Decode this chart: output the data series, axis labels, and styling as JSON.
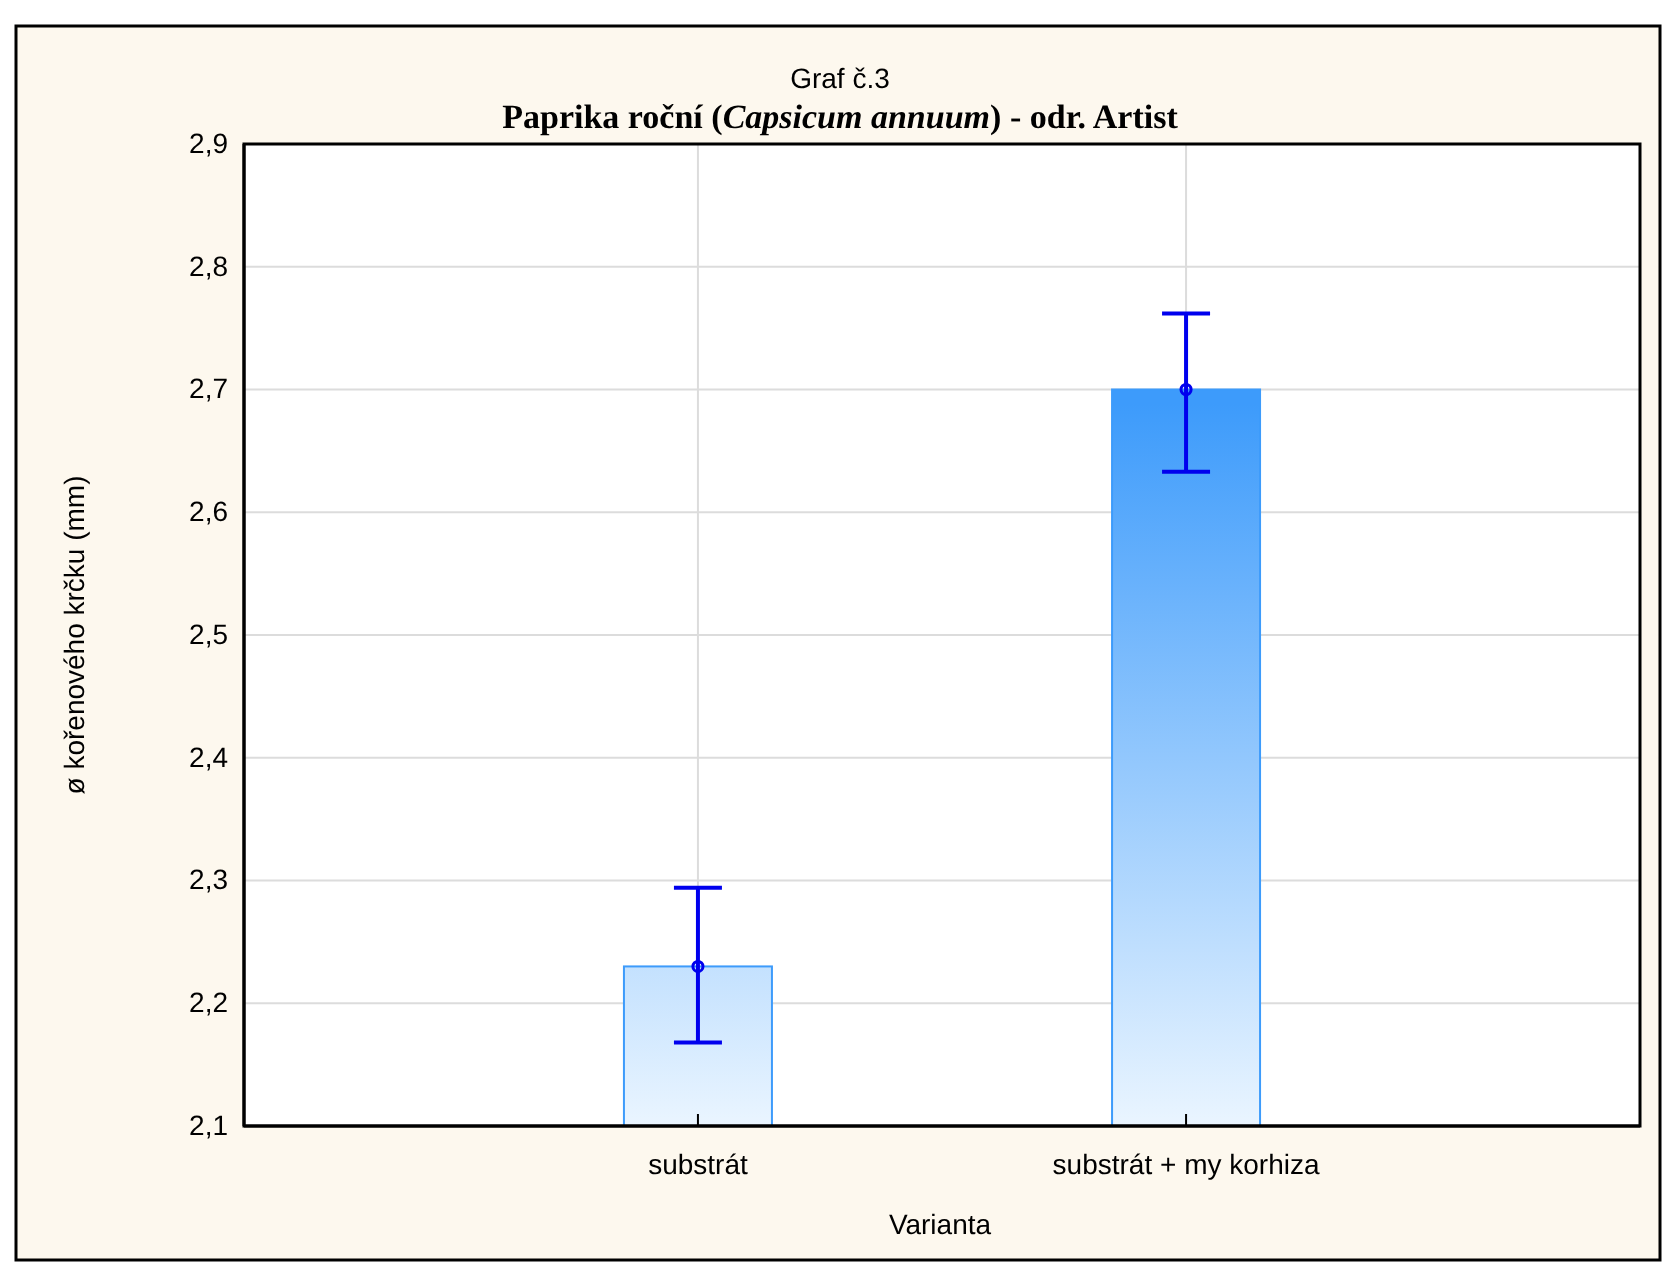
{
  "chart_data": {
    "type": "bar",
    "title": "Graf č.3",
    "subtitle": "Paprika roční (Capsicum annuum) - odr. Artist",
    "xlabel": "Varianta",
    "ylabel": "ø kořenového krčku (mm)",
    "categories": [
      "substrát",
      "substrát + my korhiza"
    ],
    "series": [
      {
        "color": "#3d9bfb",
        "values": [
          2.23,
          2.7
        ],
        "errors": [
          [
            2.168,
            2.294
          ],
          [
            2.633,
            2.762
          ]
        ]
      },
      {
        "type": "scatter",
        "color": "#0000ee",
        "marker": "circle",
        "x": [
          "substrát",
          "substrát + my korhiza"
        ],
        "values": [
          2.23,
          2.7
        ]
      }
    ],
    "ylim": [
      2.1,
      2.9
    ],
    "yticks": [
      {
        "value": 2.1,
        "label": "2,1"
      },
      {
        "value": 2.2,
        "label": "2,2"
      },
      {
        "value": 2.3,
        "label": "2,3"
      },
      {
        "value": 2.4,
        "label": "2,4"
      },
      {
        "value": 2.5,
        "label": "2,5"
      },
      {
        "value": 2.6,
        "label": "2,6"
      },
      {
        "value": 2.7,
        "label": "2,7"
      },
      {
        "value": 2.8,
        "label": "2,8"
      },
      {
        "value": 2.9,
        "label": "2,9"
      }
    ],
    "grid": true
  }
}
